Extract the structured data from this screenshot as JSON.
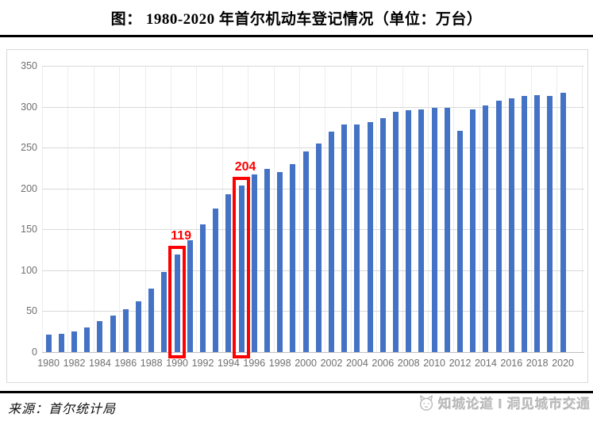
{
  "page": {
    "title": "图：  1980-2020 年首尔机动车登记情况（单位：万台）",
    "source": "来源：首尔统计局",
    "watermark": {
      "logo_icon": "cat-face-icon",
      "text": "知城论道 I 洞见城市交通"
    }
  },
  "chart_data": {
    "type": "bar",
    "title": "1980-2020 年首尔机动车登记情况",
    "unit": "万台",
    "xlabel": "",
    "ylabel": "",
    "ylim": [
      0,
      350
    ],
    "ytick_step": 50,
    "xtick_label_step": 2,
    "grid": true,
    "legend": "none",
    "bar_color": "#4472c4",
    "annotation_color": "#ff0000",
    "categories": [
      1980,
      1981,
      1982,
      1983,
      1984,
      1985,
      1986,
      1987,
      1988,
      1989,
      1990,
      1991,
      1992,
      1993,
      1994,
      1995,
      1996,
      1997,
      1998,
      1999,
      2000,
      2001,
      2002,
      2003,
      2004,
      2005,
      2006,
      2007,
      2008,
      2009,
      2010,
      2011,
      2012,
      2013,
      2014,
      2015,
      2016,
      2017,
      2018,
      2019,
      2020
    ],
    "values": [
      21,
      22,
      25,
      30,
      38,
      45,
      52,
      62,
      78,
      98,
      119,
      137,
      156,
      176,
      193,
      204,
      217,
      224,
      220,
      230,
      245,
      255,
      270,
      278,
      278,
      281,
      286,
      294,
      296,
      297,
      299,
      299,
      271,
      297,
      302,
      307,
      310,
      313,
      314,
      313,
      317
    ],
    "annotations": [
      {
        "category": 1990,
        "value": 119,
        "label": "119",
        "boxed": true
      },
      {
        "category": 1995,
        "value": 204,
        "label": "204",
        "boxed": true
      }
    ]
  },
  "colors": {
    "bar": "#4472c4",
    "annotation": "#ff0000",
    "gridline": "#d9d9d9",
    "axis_text": "#6f6f6f",
    "separator_rule": "#000000",
    "panel_border": "#d9d9d9",
    "watermark": "#bdbdbd"
  }
}
